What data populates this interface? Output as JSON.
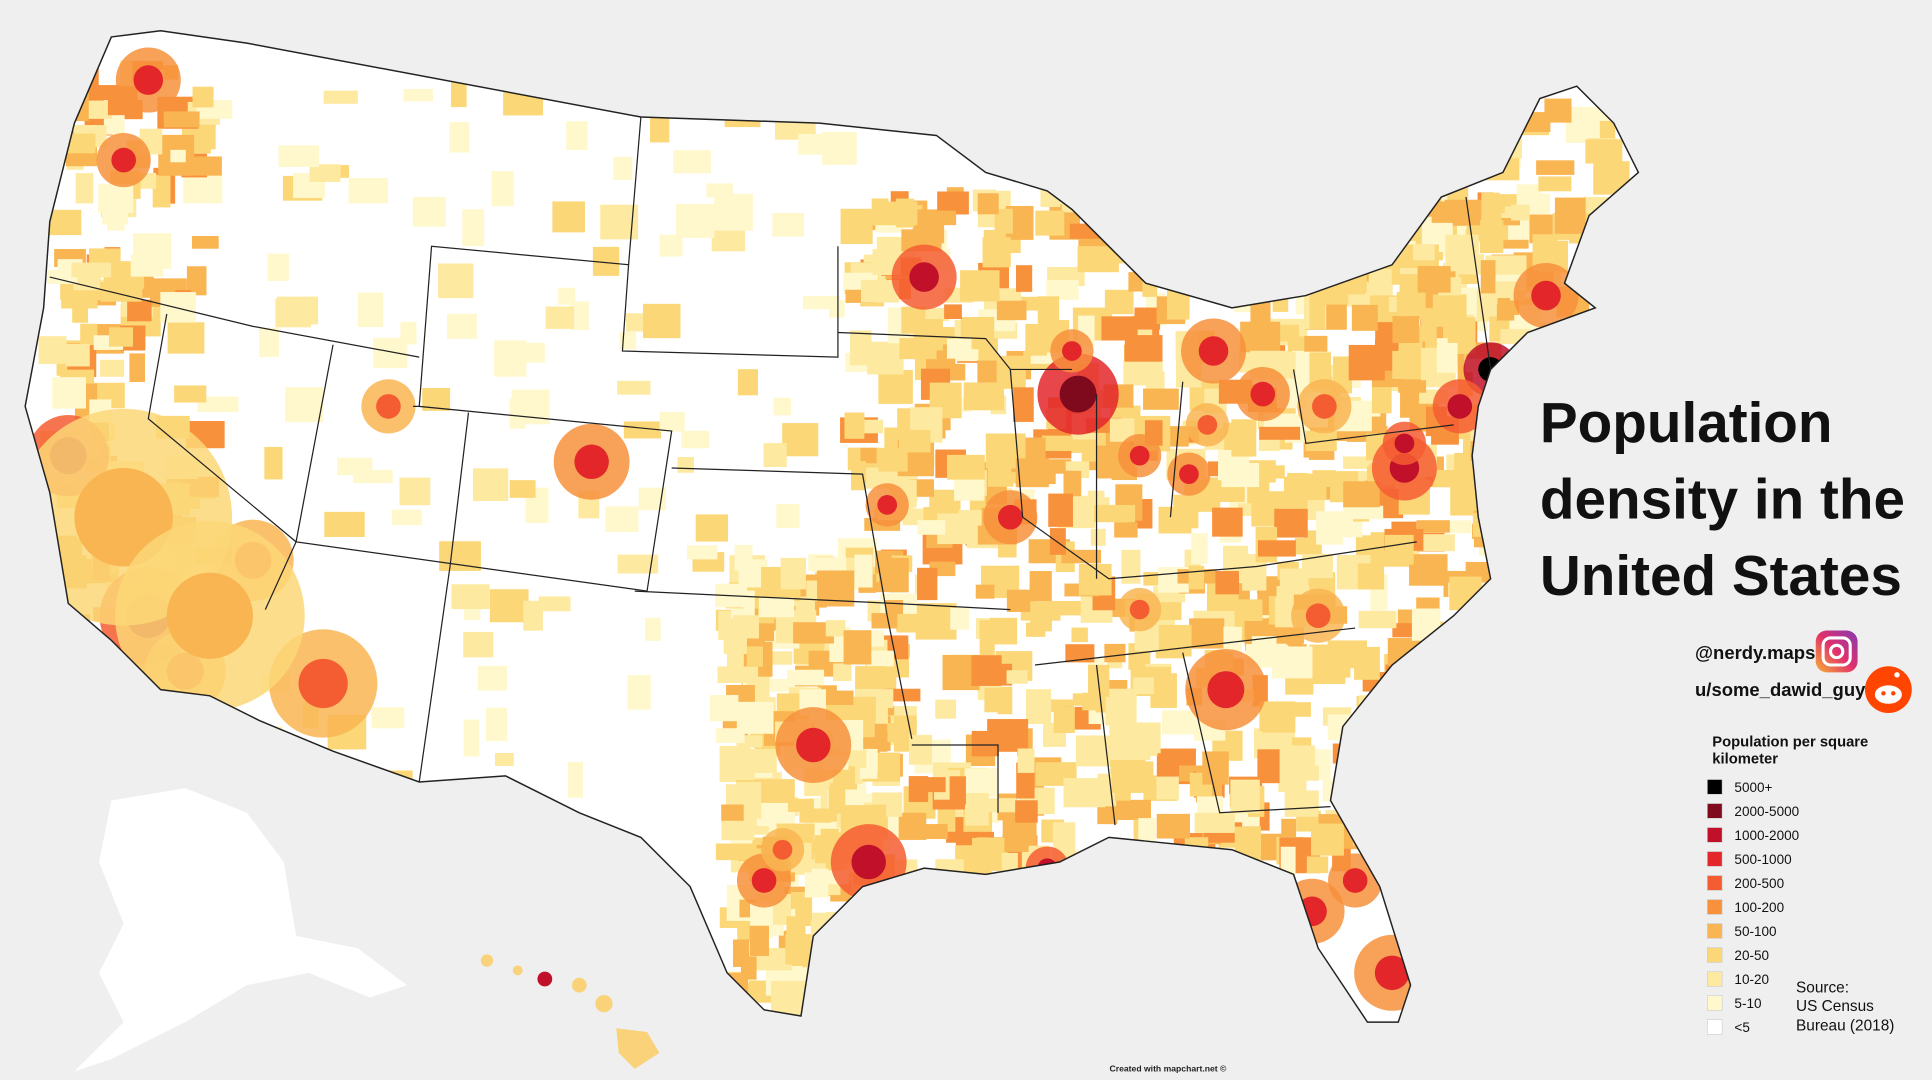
{
  "title": "Population density in the United States",
  "social": {
    "instagram": "@nerdy.maps",
    "reddit": "u/some_dawid_guy"
  },
  "legend": {
    "title": "Population per square kilometer",
    "items": [
      {
        "label": "5000+",
        "color": "#000000"
      },
      {
        "label": "2000-5000",
        "color": "#7f0a1e"
      },
      {
        "label": "1000-2000",
        "color": "#c0102a"
      },
      {
        "label": "500-1000",
        "color": "#e3262a"
      },
      {
        "label": "200-500",
        "color": "#f45d31"
      },
      {
        "label": "100-200",
        "color": "#f7913c"
      },
      {
        "label": "50-100",
        "color": "#f9b552"
      },
      {
        "label": "20-50",
        "color": "#fbd777"
      },
      {
        "label": "10-20",
        "color": "#fde9a0"
      },
      {
        "label": "5-10",
        "color": "#fff8cc"
      },
      {
        "label": "<5",
        "color": "#ffffff"
      }
    ]
  },
  "source": {
    "label": "Source:",
    "text": "US Census Bureau (2018)"
  },
  "credit": "Created with mapchart.net ©"
}
